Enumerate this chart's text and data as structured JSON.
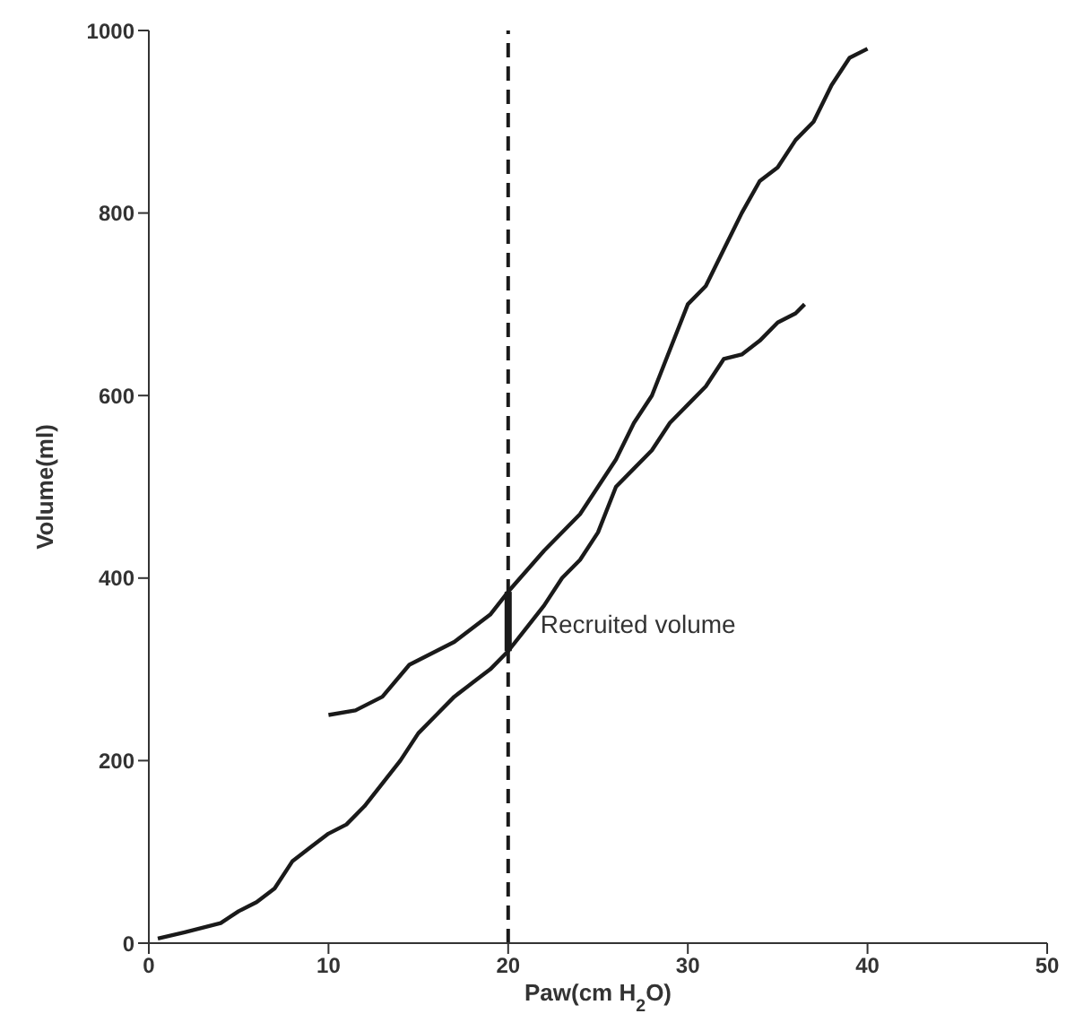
{
  "chart_data": {
    "type": "line",
    "xlabel": "Paw(cm H$_{2}$O)",
    "ylabel": "Volume(ml)",
    "xlim": [
      0,
      50
    ],
    "xticks": [
      0,
      10,
      20,
      30,
      40,
      50
    ],
    "ylim": [
      0,
      1000
    ],
    "yticks": [
      0,
      200,
      400,
      600,
      800,
      1000
    ],
    "marker": "none",
    "series": [
      {
        "color": "#1a1a1a",
        "x": [
          10,
          11.5,
          13,
          14.5,
          17,
          19,
          20,
          22,
          24,
          25,
          26,
          27,
          28,
          29,
          30,
          31,
          32,
          33,
          34,
          35,
          36,
          37,
          38,
          39,
          40
        ],
        "values": [
          250,
          255,
          270,
          305,
          330,
          360,
          385,
          430,
          470,
          500,
          530,
          570,
          600,
          650,
          700,
          720,
          760,
          800,
          835,
          850,
          880,
          900,
          940,
          970,
          980
        ]
      },
      {
        "color": "#1a1a1a",
        "x": [
          0.5,
          2,
          4,
          5,
          6,
          7,
          8,
          9,
          10,
          11,
          12,
          13,
          14,
          15,
          16,
          17,
          18,
          19,
          20,
          21,
          22,
          23,
          24,
          25,
          26,
          27,
          28,
          29,
          30,
          31,
          32,
          33,
          34,
          35,
          36,
          36.5
        ],
        "values": [
          5,
          12,
          22,
          35,
          45,
          60,
          90,
          105,
          120,
          130,
          150,
          175,
          200,
          230,
          250,
          270,
          285,
          300,
          320,
          345,
          370,
          400,
          420,
          450,
          500,
          520,
          540,
          570,
          590,
          610,
          640,
          645,
          660,
          680,
          690,
          700
        ]
      },
      {
        "color": "#1a1a1a",
        "x": [
          20,
          20
        ],
        "values": [
          320,
          385
        ]
      }
    ],
    "ref_lines": [
      {
        "axis": "x",
        "value": 20,
        "line_style": "dashed",
        "color": "#1a1a1a"
      }
    ],
    "annotations": [
      {
        "text": "Recruited volume",
        "x": 20,
        "y": 350
      }
    ]
  }
}
